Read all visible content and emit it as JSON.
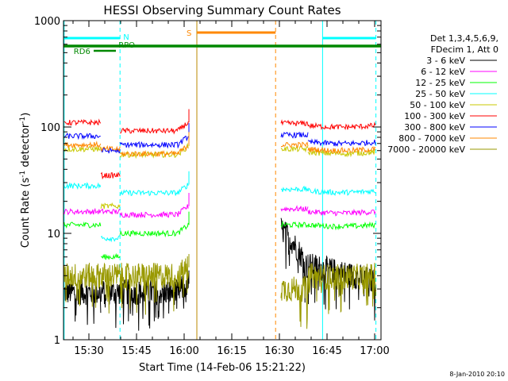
{
  "chart_data": {
    "type": "line",
    "title": "HESSI Observing Summary Count Rates",
    "xlabel": "Start Time (14-Feb-06 15:21:22)",
    "ylabel_main": "Count Rate (s",
    "ylabel_sup1": "-1",
    "ylabel_mid": " detector",
    "ylabel_sup2": "-1",
    "ylabel_end": ")",
    "x_range_min": [
      22,
      122
    ],
    "y_range": [
      1,
      1000
    ],
    "y_scale": "log",
    "x_ticks": [
      {
        "label": "15:30",
        "minute": 30
      },
      {
        "label": "15:45",
        "minute": 45
      },
      {
        "label": "16:00",
        "minute": 60
      },
      {
        "label": "16:15",
        "minute": 75
      },
      {
        "label": "16:30",
        "minute": 90
      },
      {
        "label": "16:45",
        "minute": 105
      },
      {
        "label": "17:00",
        "minute": 120
      }
    ],
    "y_ticks": [
      {
        "label": "1",
        "value": 1
      },
      {
        "label": "10",
        "value": 10
      },
      {
        "label": "100",
        "value": 100
      },
      {
        "label": "1000",
        "value": 1000
      }
    ],
    "legend_header": [
      "Det 1,3,4,5,6,9,",
      "FDecim 1, Att 0"
    ],
    "series": [
      {
        "name": "3 - 6 keV",
        "color": "#000000",
        "pre": 2.8,
        "drop": 2.8,
        "post": 2.8,
        "late": 10,
        "end": 4
      },
      {
        "name": "6 - 12 keV",
        "color": "#ff00ff",
        "pre": 16,
        "drop": 16,
        "post": 15,
        "late": 17,
        "end": 16
      },
      {
        "name": "12 - 25 keV",
        "color": "#00ff00",
        "pre": 12,
        "drop": 6,
        "post": 10,
        "late": 12,
        "end": 12
      },
      {
        "name": "25 - 50 keV",
        "color": "#00ffff",
        "pre": 28,
        "drop": 9,
        "post": 24,
        "late": 26,
        "end": 25
      },
      {
        "name": "50 - 100 keV",
        "color": "#c8c800",
        "pre": 62,
        "drop": 18,
        "post": 55,
        "late": 62,
        "end": 58
      },
      {
        "name": "100 - 300 keV",
        "color": "#ff0000",
        "pre": 110,
        "drop": 35,
        "post": 92,
        "late": 108,
        "end": 103
      },
      {
        "name": "300 - 800 keV",
        "color": "#0000ff",
        "pre": 82,
        "drop": 60,
        "post": 68,
        "late": 84,
        "end": 72
      },
      {
        "name": "800 - 7000 keV",
        "color": "#ff8800",
        "pre": 68,
        "drop": 62,
        "post": 56,
        "late": 68,
        "end": 62
      },
      {
        "name": "7000 - 20000 keV",
        "color": "#999900",
        "pre": 4,
        "drop": 4,
        "post": 4,
        "late": 3,
        "end": 4
      }
    ],
    "annotations": [
      {
        "label": "N",
        "color": "#00ffff"
      },
      {
        "label": "RPO",
        "color": "#008800"
      },
      {
        "label": "RD6",
        "color": "#008800"
      },
      {
        "label": "S",
        "color": "#ff8800"
      }
    ],
    "timestamp": "8-Jan-2010 20:10"
  }
}
